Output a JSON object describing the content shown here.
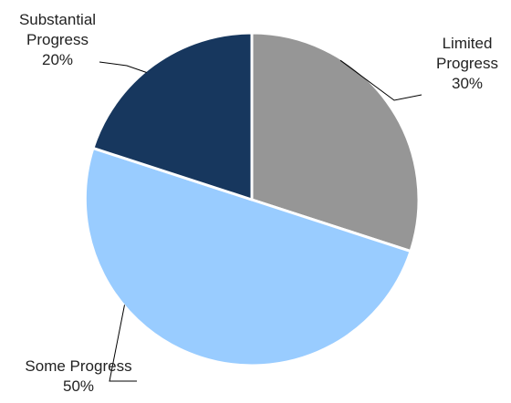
{
  "chart_data": {
    "type": "pie",
    "title": "",
    "start_angle_deg": 0,
    "direction": "clockwise",
    "slices": [
      {
        "label_lines": [
          "Limited",
          "Progress"
        ],
        "percent_label": "30%",
        "value": 30,
        "color": "#969696"
      },
      {
        "label_lines": [
          "Some Progress"
        ],
        "percent_label": "50%",
        "value": 50,
        "color": "#99CCFF"
      },
      {
        "label_lines": [
          "Substantial",
          "Progress"
        ],
        "percent_label": "20%",
        "value": 20,
        "color": "#17375E"
      }
    ],
    "slice_border_color": "#FFFFFF",
    "leader_line_color": "#000000",
    "legend": "none"
  }
}
